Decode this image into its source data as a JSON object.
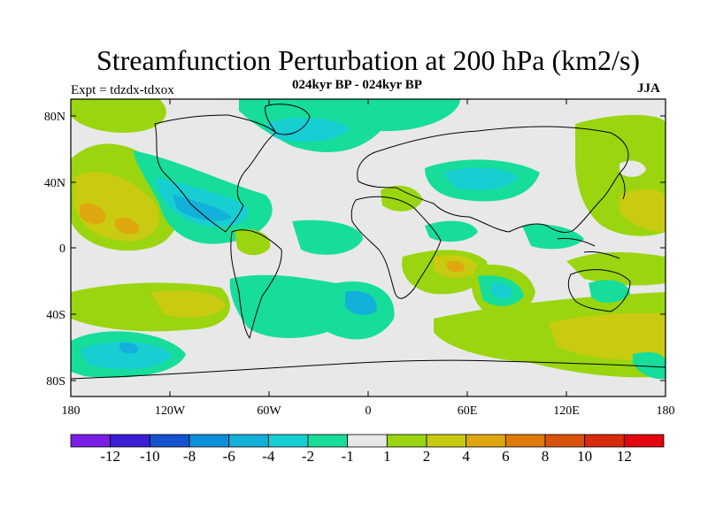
{
  "title": "Streamfunction Perturbation at 200 hPa (km2/s)",
  "subtitle": "024kyr BP - 024kyr BP",
  "left_label": "Expt = tdzdx-tdxox",
  "right_label": "JJA",
  "lat_labels": [
    "80N",
    "40N",
    "0",
    "40S",
    "80S"
  ],
  "lon_labels": [
    "180",
    "120W",
    "60W",
    "0",
    "60E",
    "120E",
    "180"
  ],
  "colorbar": {
    "labels": [
      "-12",
      "-10",
      "-8",
      "-6",
      "-4",
      "-2",
      "-1",
      "1",
      "2",
      "4",
      "6",
      "8",
      "10",
      "12"
    ],
    "colors": [
      "#7a1fe6",
      "#3a1fd6",
      "#1452cf",
      "#0e8fda",
      "#13b0d9",
      "#17cfd2",
      "#16dd99",
      "#e8e8e8",
      "#9ad50f",
      "#c8cb10",
      "#dfa70f",
      "#df7a0b",
      "#d9520b",
      "#d82a0c",
      "#e2040e"
    ]
  },
  "colors": {
    "background": "#e8e8e8",
    "cyan_light": "#16dd99",
    "cyan": "#17cfd2",
    "blue_light": "#13b0d9",
    "green": "#9ad50f",
    "yellow": "#c8cb10",
    "orange": "#dfa70f"
  }
}
